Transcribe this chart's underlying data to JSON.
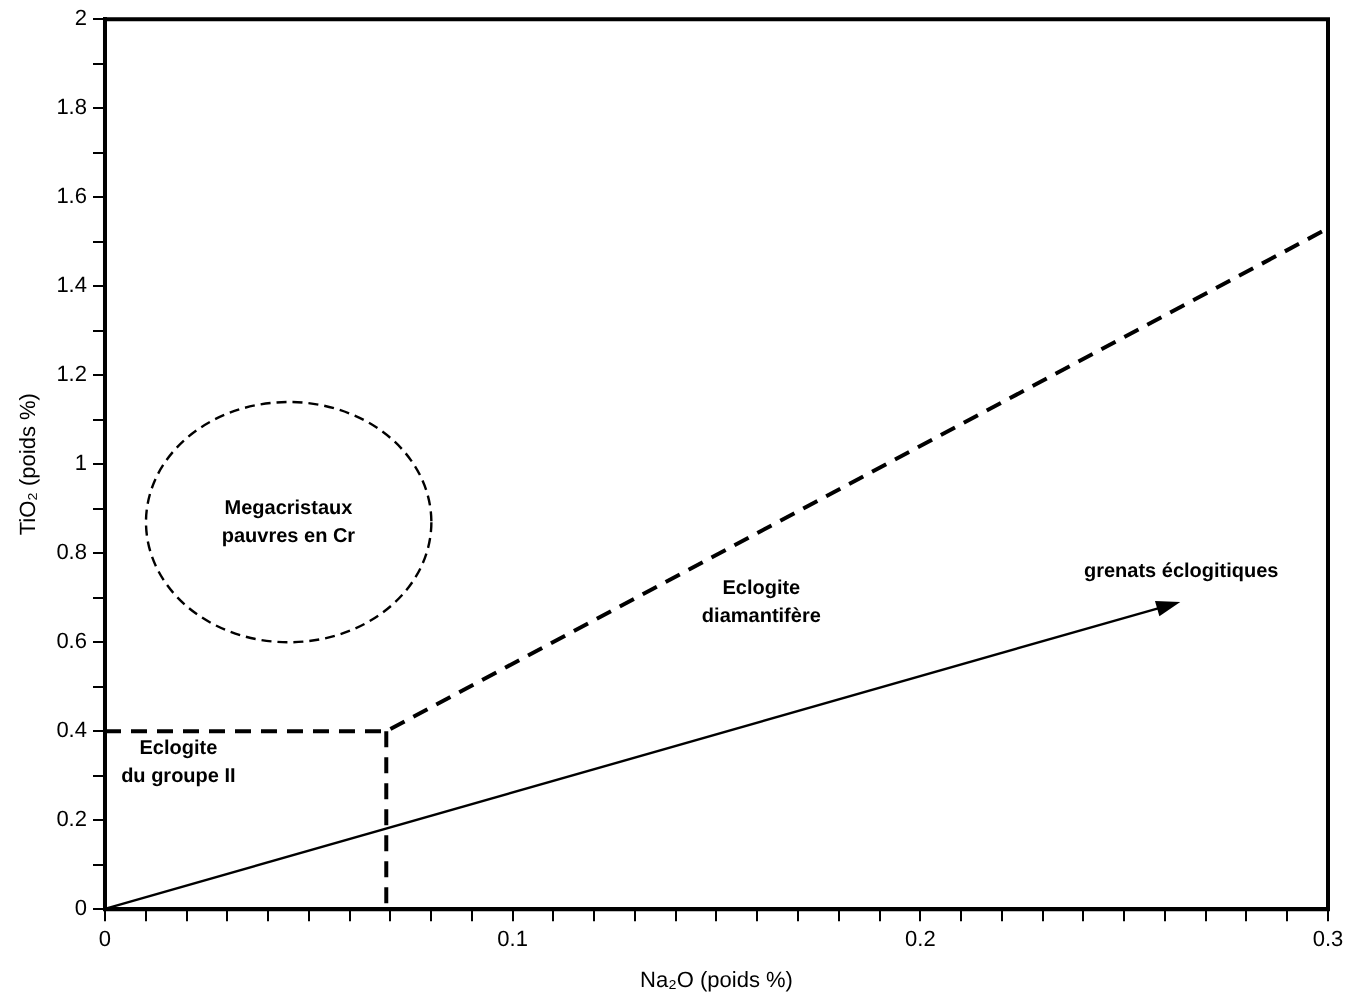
{
  "chart_data": {
    "type": "line",
    "xlabel": "Na₂O (poids %)",
    "ylabel": "TiO₂ (poids %)",
    "xlim": [
      0,
      0.3
    ],
    "ylim": [
      0,
      2
    ],
    "xticks": [
      0,
      {
        "value": 0.01,
        "label": null
      },
      {
        "value": 0.02,
        "label": null
      },
      {
        "value": 0.03,
        "label": null
      },
      {
        "value": 0.04,
        "label": null
      },
      {
        "value": 0.05,
        "label": null
      },
      {
        "value": 0.06,
        "label": null
      },
      {
        "value": 0.07,
        "label": null
      },
      {
        "value": 0.08,
        "label": null
      },
      {
        "value": 0.09,
        "label": null
      },
      0.1,
      {
        "value": 0.11,
        "label": null
      },
      {
        "value": 0.12,
        "label": null
      },
      {
        "value": 0.13,
        "label": null
      },
      {
        "value": 0.14,
        "label": null
      },
      {
        "value": 0.15,
        "label": null
      },
      {
        "value": 0.16,
        "label": null
      },
      {
        "value": 0.17,
        "label": null
      },
      {
        "value": 0.18,
        "label": null
      },
      {
        "value": 0.19,
        "label": null
      },
      0.2,
      {
        "value": 0.21,
        "label": null
      },
      {
        "value": 0.22,
        "label": null
      },
      {
        "value": 0.23,
        "label": null
      },
      {
        "value": 0.24,
        "label": null
      },
      {
        "value": 0.25,
        "label": null
      },
      {
        "value": 0.26,
        "label": null
      },
      {
        "value": 0.27,
        "label": null
      },
      {
        "value": 0.28,
        "label": null
      },
      {
        "value": 0.29,
        "label": null
      },
      0.3
    ],
    "yticks": [
      0,
      {
        "value": 0.1,
        "label": null
      },
      0.2,
      {
        "value": 0.3,
        "label": null
      },
      0.4,
      {
        "value": 0.5,
        "label": null
      },
      0.6,
      {
        "value": 0.7,
        "label": null
      },
      0.8,
      {
        "value": 0.9,
        "label": null
      },
      1,
      {
        "value": 1.1,
        "label": null
      },
      1.2,
      {
        "value": 1.3,
        "label": null
      },
      1.4,
      {
        "value": 1.5,
        "label": null
      },
      1.6,
      {
        "value": 1.7,
        "label": null
      },
      1.8,
      {
        "value": 1.9,
        "label": null
      },
      2
    ],
    "grid": false,
    "legend": false,
    "marker": "none",
    "series": [
      {
        "color": "#000000",
        "line_style": "dashed",
        "x": [
          0,
          0.069,
          0.3
        ],
        "values": [
          0.4,
          0.4,
          1.53
        ]
      },
      {
        "color": "#000000",
        "line_style": "dashed",
        "x": [
          0.069,
          0.069
        ],
        "values": [
          0.4,
          0
        ]
      }
    ],
    "annotations": [
      "Megacristaux\npauvres en Cr",
      "Eclogite\ndu groupe II",
      "Eclogite\ndiamantifère",
      "grenats éclogitiques"
    ]
  }
}
